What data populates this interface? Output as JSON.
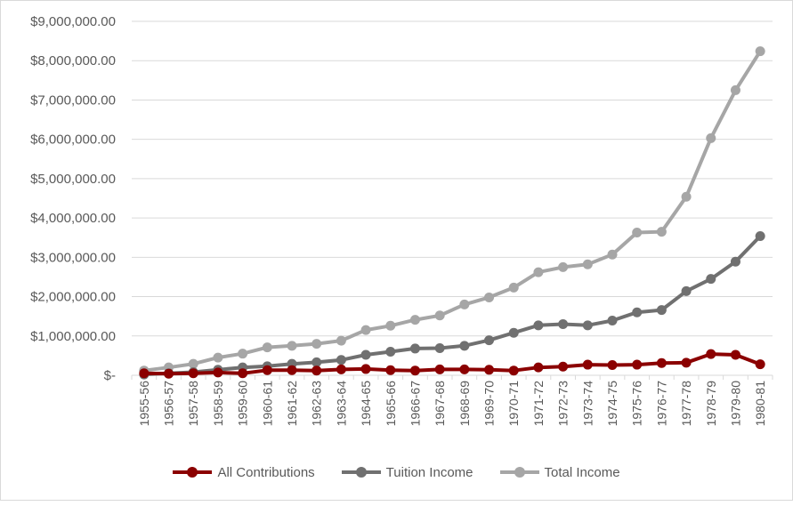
{
  "chart_data": {
    "type": "line",
    "title": "",
    "xlabel": "",
    "ylabel": "",
    "ylim": [
      0,
      9000000
    ],
    "yticks": [
      0,
      1000000,
      2000000,
      3000000,
      4000000,
      5000000,
      6000000,
      7000000,
      8000000,
      9000000
    ],
    "ytick_labels": [
      "$-",
      "$1,000,000.00",
      "$2,000,000.00",
      "$3,000,000.00",
      "$4,000,000.00",
      "$5,000,000.00",
      "$6,000,000.00",
      "$7,000,000.00",
      "$8,000,000.00",
      "$9,000,000.00"
    ],
    "grid": true,
    "legend_position": "bottom",
    "categories": [
      "1955-56",
      "1956-57",
      "1957-58",
      "1958-59",
      "1959-60",
      "1960-61",
      "1961-62",
      "1962-63",
      "1963-64",
      "1964-65",
      "1965-66",
      "1966-67",
      "1967-68",
      "1968-69",
      "1969-70",
      "1970-71",
      "1971-72",
      "1972-73",
      "1973-74",
      "1974-75",
      "1975-76",
      "1976-77",
      "1977-78",
      "1978-79",
      "1979-80",
      "1980-81"
    ],
    "series": [
      {
        "name": "All Contributions",
        "color": "#8b0000",
        "values": [
          50000,
          40000,
          50000,
          70000,
          50000,
          130000,
          130000,
          120000,
          150000,
          160000,
          130000,
          120000,
          150000,
          150000,
          140000,
          120000,
          200000,
          220000,
          270000,
          260000,
          270000,
          310000,
          320000,
          540000,
          520000,
          280000
        ]
      },
      {
        "name": "Tuition Income",
        "color": "#707070",
        "values": [
          20000,
          50000,
          80000,
          140000,
          200000,
          230000,
          290000,
          330000,
          390000,
          520000,
          600000,
          680000,
          690000,
          750000,
          890000,
          1080000,
          1270000,
          1300000,
          1270000,
          1390000,
          1600000,
          1660000,
          2140000,
          2450000,
          2890000,
          3540000
        ]
      },
      {
        "name": "Total Income",
        "color": "#a6a6a6",
        "values": [
          120000,
          200000,
          290000,
          450000,
          550000,
          710000,
          750000,
          800000,
          880000,
          1150000,
          1260000,
          1410000,
          1520000,
          1800000,
          1980000,
          2230000,
          2620000,
          2750000,
          2820000,
          3070000,
          3630000,
          3650000,
          4540000,
          6030000,
          7250000,
          8240000
        ]
      }
    ]
  }
}
